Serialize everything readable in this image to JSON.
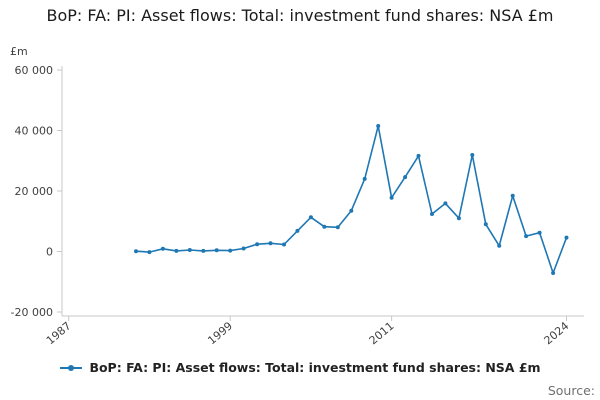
{
  "title": {
    "text": "BoP: FA: PI: Asset flows: Total: investment fund shares: NSA £m"
  },
  "legend": {
    "label": "BoP: FA: PI: Asset flows: Total: investment fund shares: NSA £m"
  },
  "source": {
    "label": "Source:"
  },
  "chart_data": {
    "type": "line",
    "title": "BoP: FA: PI: Asset flows: Total: investment fund shares: NSA £m",
    "xlabel": "",
    "ylabel": "£m",
    "grid": false,
    "legend_position": "bottom",
    "xlim": [
      1986.5,
      2025.3
    ],
    "ylim": [
      -20000,
      60000
    ],
    "axis_color": "#c8c8c8",
    "label_color": "#414042",
    "x_ticks": [
      {
        "value": 1987,
        "label": "1987"
      },
      {
        "value": 1999,
        "label": "1999"
      },
      {
        "value": 2011,
        "label": "2011"
      },
      {
        "value": 2024,
        "label": "2024"
      }
    ],
    "y_ticks": [
      {
        "value": -20000,
        "label": "-20 000"
      },
      {
        "value": 0,
        "label": "0"
      },
      {
        "value": 20000,
        "label": "20 000"
      },
      {
        "value": 40000,
        "label": "40 000"
      },
      {
        "value": 60000,
        "label": "60 000"
      }
    ],
    "x": [
      1992,
      1993,
      1994,
      1995,
      1996,
      1997,
      1998,
      1999,
      2000,
      2001,
      2002,
      2003,
      2004,
      2005,
      2006,
      2007,
      2008,
      2009,
      2010,
      2011,
      2012,
      2013,
      2014,
      2015,
      2016,
      2017,
      2018,
      2019,
      2020,
      2021,
      2022,
      2023,
      2024
    ],
    "series": [
      {
        "name": "BoP: FA: PI: Asset flows: Total: investment fund shares: NSA £m",
        "color": "#1f77b4",
        "values": [
          100,
          -200,
          900,
          200,
          500,
          200,
          400,
          300,
          1000,
          2400,
          2700,
          2300,
          6800,
          11300,
          8200,
          8000,
          13500,
          24000,
          41500,
          17800,
          24600,
          31600,
          12400,
          15900,
          11000,
          31900,
          9000,
          1900,
          18400,
          5100,
          6200,
          -7100,
          4600
        ]
      }
    ]
  }
}
